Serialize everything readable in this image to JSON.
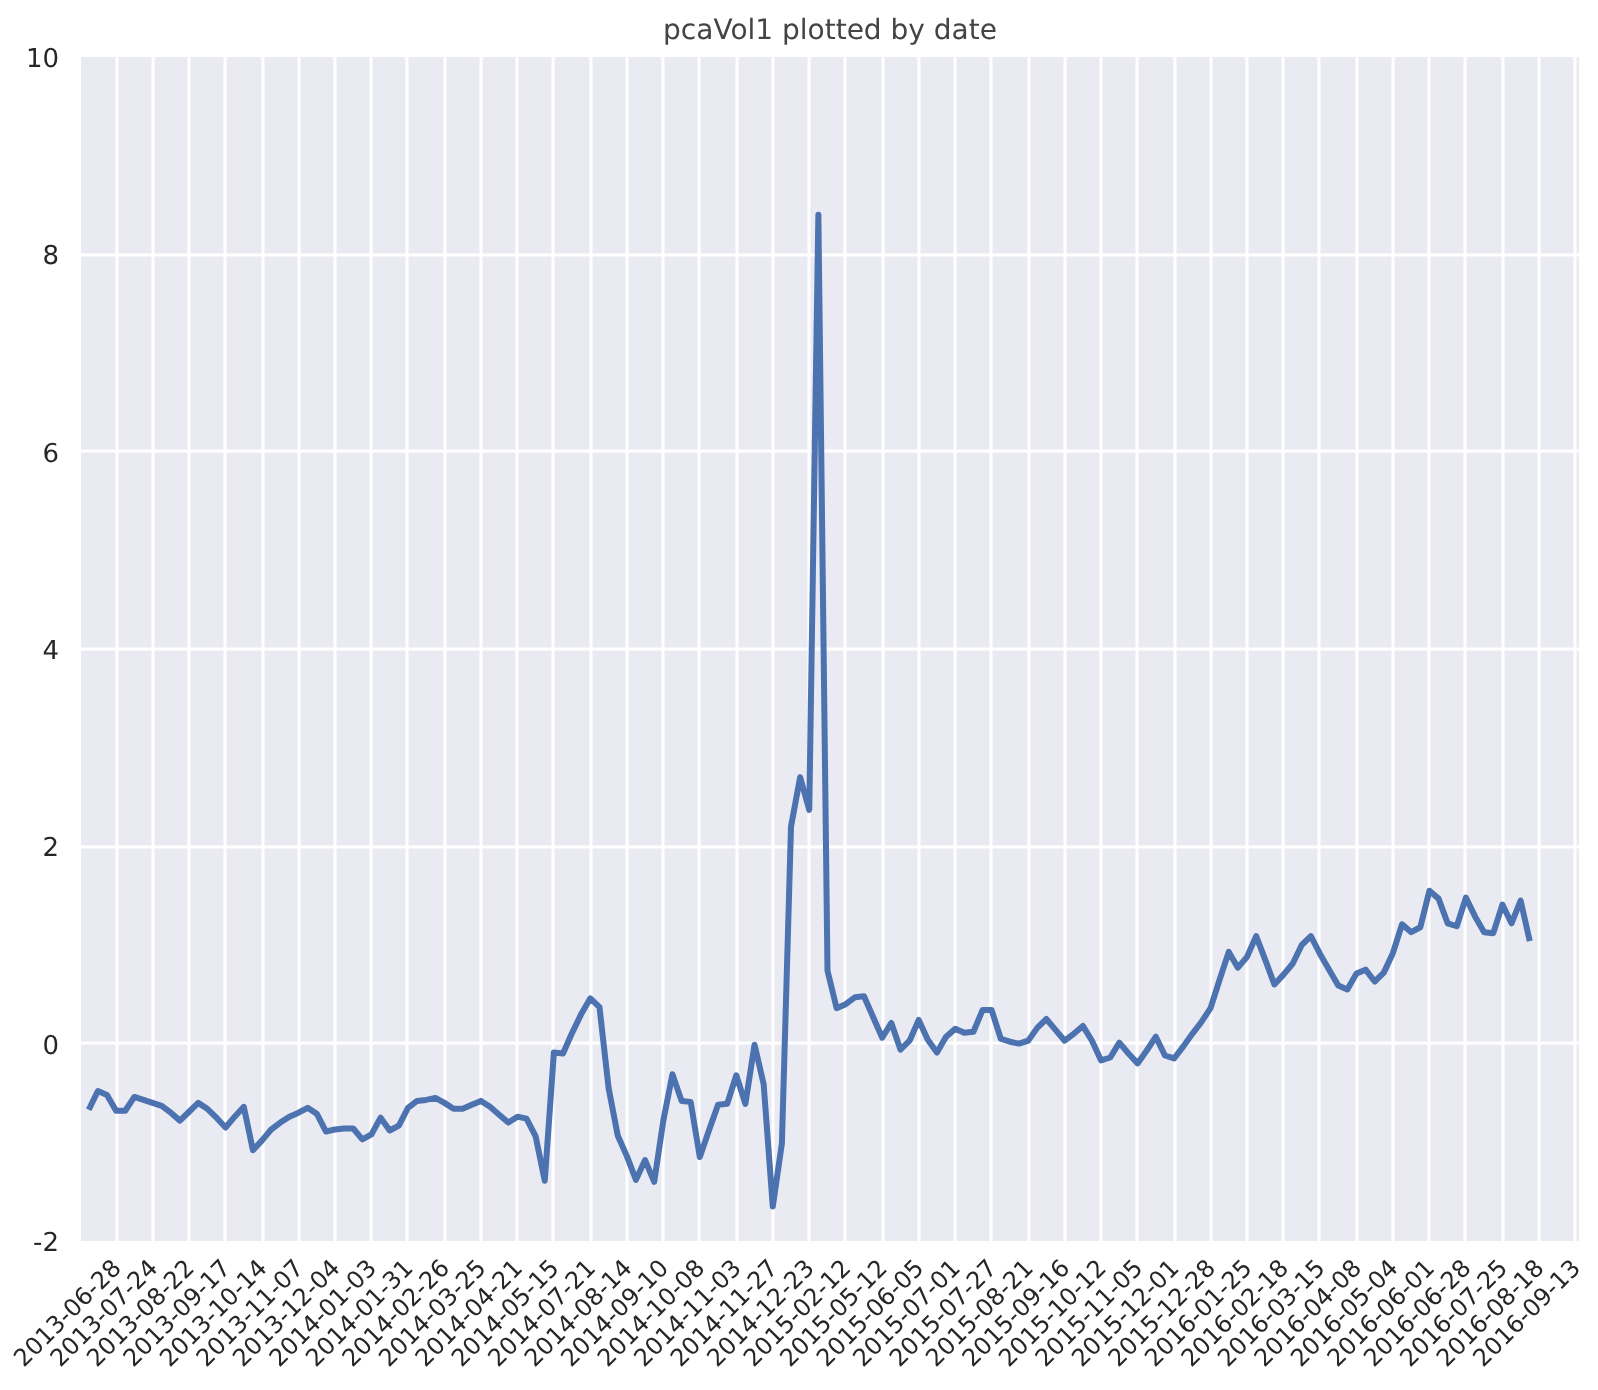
{
  "chart_data": {
    "type": "line",
    "title": "pcaVol1 plotted by date",
    "categories": [
      null,
      null,
      null,
      "2013-06-28",
      null,
      null,
      null,
      "2013-07-24",
      null,
      null,
      null,
      "2013-08-22",
      null,
      null,
      null,
      "2013-09-17",
      null,
      null,
      null,
      "2013-10-14",
      null,
      null,
      null,
      "2013-11-07",
      null,
      null,
      null,
      "2013-12-04",
      null,
      null,
      null,
      "2014-01-03",
      null,
      null,
      null,
      "2014-01-31",
      null,
      null,
      null,
      "2014-02-26",
      null,
      null,
      null,
      "2014-03-25",
      null,
      null,
      null,
      "2014-04-21",
      null,
      null,
      null,
      "2014-05-15",
      null,
      null,
      null,
      "2014-07-21",
      null,
      null,
      null,
      "2014-08-14",
      null,
      null,
      null,
      "2014-09-10",
      null,
      null,
      null,
      "2014-10-08",
      null,
      null,
      null,
      "2014-11-03",
      null,
      null,
      null,
      "2014-11-27",
      null,
      null,
      null,
      "2014-12-23",
      null,
      null,
      null,
      "2015-02-12",
      null,
      null,
      null,
      "2015-05-12",
      null,
      null,
      null,
      "2015-06-05",
      null,
      null,
      null,
      "2015-07-01",
      null,
      null,
      null,
      "2015-07-27",
      null,
      null,
      null,
      "2015-08-21",
      null,
      null,
      null,
      "2015-09-16",
      null,
      null,
      null,
      "2015-10-12",
      null,
      null,
      null,
      "2015-11-05",
      null,
      null,
      null,
      "2015-12-01",
      null,
      null,
      null,
      "2015-12-28",
      null,
      null,
      null,
      "2016-01-25",
      null,
      null,
      null,
      "2016-02-18",
      null,
      null,
      null,
      "2016-03-15",
      null,
      null,
      null,
      "2016-04-08",
      null,
      null,
      null,
      "2016-05-04",
      null,
      null,
      null,
      "2016-06-01",
      null,
      null,
      null,
      "2016-06-28",
      null,
      null,
      null,
      "2016-07-25",
      null,
      null,
      null,
      "2016-08-18",
      null,
      null,
      null,
      "2016-09-13"
    ],
    "series": [
      {
        "color": "#4c72b0",
        "values": [
          -0.67,
          -0.48,
          -0.52,
          -0.68,
          -0.68,
          -0.54,
          -0.57,
          -0.6,
          -0.63,
          -0.7,
          -0.78,
          -0.69,
          -0.6,
          -0.66,
          -0.75,
          -0.85,
          -0.74,
          -0.64,
          -1.08,
          -0.98,
          -0.87,
          -0.8,
          -0.74,
          -0.7,
          -0.65,
          -0.71,
          -0.89,
          -0.87,
          -0.86,
          -0.86,
          -0.97,
          -0.92,
          -0.75,
          -0.88,
          -0.83,
          -0.65,
          -0.58,
          -0.57,
          -0.55,
          -0.6,
          -0.66,
          -0.66,
          -0.62,
          -0.58,
          -0.64,
          -0.72,
          -0.8,
          -0.74,
          -0.76,
          -0.94,
          -1.39,
          -0.09,
          -0.1,
          0.11,
          0.3,
          0.46,
          0.37,
          -0.45,
          -0.93,
          -1.14,
          -1.38,
          -1.18,
          -1.4,
          -0.78,
          -0.31,
          -0.58,
          -0.59,
          -1.15,
          -0.88,
          -0.62,
          -0.61,
          -0.32,
          -0.61,
          -0.01,
          -0.41,
          -1.65,
          -1.01,
          2.2,
          2.7,
          2.37,
          8.4,
          0.74,
          0.36,
          0.4,
          0.47,
          0.48,
          0.27,
          0.06,
          0.21,
          -0.06,
          0.03,
          0.24,
          0.04,
          -0.09,
          0.07,
          0.15,
          0.11,
          0.12,
          0.34,
          0.34,
          0.05,
          0.02,
          0.0,
          0.03,
          0.16,
          0.25,
          0.14,
          0.03,
          0.1,
          0.18,
          0.03,
          -0.17,
          -0.14,
          0.01,
          -0.1,
          -0.2,
          -0.07,
          0.07,
          -0.12,
          -0.15,
          -0.03,
          0.1,
          0.22,
          0.36,
          0.65,
          0.93,
          0.77,
          0.88,
          1.09,
          0.85,
          0.6,
          0.7,
          0.81,
          1.0,
          1.09,
          0.91,
          0.75,
          0.59,
          0.55,
          0.71,
          0.75,
          0.63,
          0.72,
          0.92,
          1.21,
          1.13,
          1.18,
          1.55,
          1.47,
          1.22,
          1.19,
          1.48,
          1.29,
          1.13,
          1.12,
          1.41,
          1.22,
          1.45,
          1.04,
          null,
          null,
          null,
          null,
          null
        ]
      }
    ],
    "ylim": [
      -2,
      10
    ],
    "yticks": [
      -2,
      0,
      2,
      4,
      6,
      8,
      10
    ],
    "grid": true,
    "line_style": "solid"
  }
}
